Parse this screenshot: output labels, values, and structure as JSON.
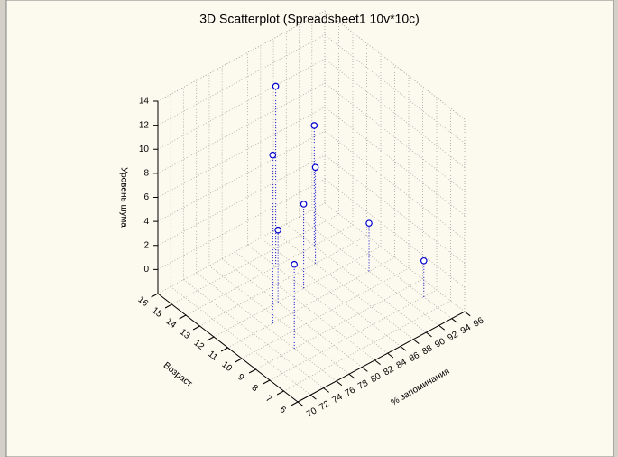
{
  "chart_data": {
    "type": "scatter3d",
    "title": "3D Scatterplot (Spreadsheet1 10v*10c)",
    "xlabel": "% запоминания",
    "ylabel": "Возраст",
    "zlabel": "Уровень шума",
    "x": [
      84,
      77,
      90,
      80,
      84,
      88,
      92,
      76,
      94
    ],
    "y": [
      14,
      11,
      14,
      12,
      12,
      13,
      11,
      9,
      8
    ],
    "z": [
      13,
      12,
      8,
      4,
      5,
      6,
      2,
      5,
      1
    ],
    "color": "#0000cc",
    "xlim": [
      70,
      96
    ],
    "xticks": [
      70,
      72,
      74,
      76,
      78,
      80,
      82,
      84,
      86,
      88,
      90,
      92,
      94,
      96
    ],
    "ylim": [
      6,
      16
    ],
    "yticks": [
      6,
      7,
      8,
      9,
      10,
      11,
      12,
      13,
      14,
      15,
      16
    ],
    "zlim": [
      -2,
      14
    ],
    "zticks": [
      0,
      2,
      4,
      6,
      8,
      10,
      12,
      14
    ],
    "grid": true
  }
}
